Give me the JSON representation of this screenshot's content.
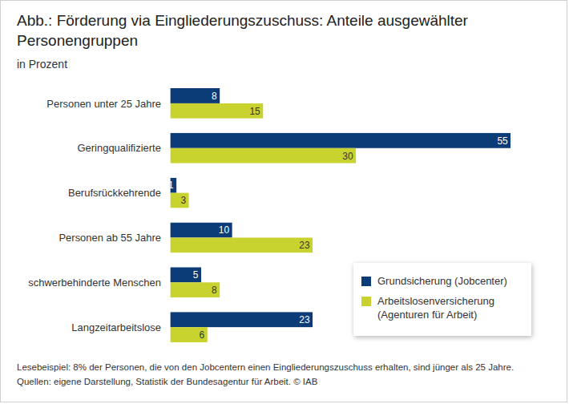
{
  "chart_data": {
    "type": "bar",
    "orientation": "horizontal",
    "title": "Abb.: Förderung via Eingliederungszuschuss: Anteile ausgewählter Personengruppen",
    "subtitle": "in Prozent",
    "categories": [
      "Personen unter 25 Jahre",
      "Geringqualifizierte",
      "Berufsrückkehrende",
      "Personen ab 55 Jahre",
      "schwerbehinderte Menschen",
      "Langzeitarbeitslose"
    ],
    "series": [
      {
        "name": "Grundsicherung (Jobcenter)",
        "color": "#0c3c78",
        "values": [
          8,
          55,
          1,
          10,
          5,
          23
        ]
      },
      {
        "name": "Arbeitslosenversicherung (Agenturen für Arbeit)",
        "color": "#c9d330",
        "values": [
          15,
          30,
          3,
          23,
          8,
          6
        ]
      }
    ],
    "data_labels": true,
    "tick_labels": "y",
    "legend": "lower right",
    "caption": [
      "Lesebeispiel: 8% der Personen, die von den Jobcentern einen Eingliederungszuschuss erhalten, sind jünger als 25 Jahre.",
      "Quellen: eigene Darstellung, Statistik der Bundesagentur für Arbeit. © IAB"
    ]
  }
}
